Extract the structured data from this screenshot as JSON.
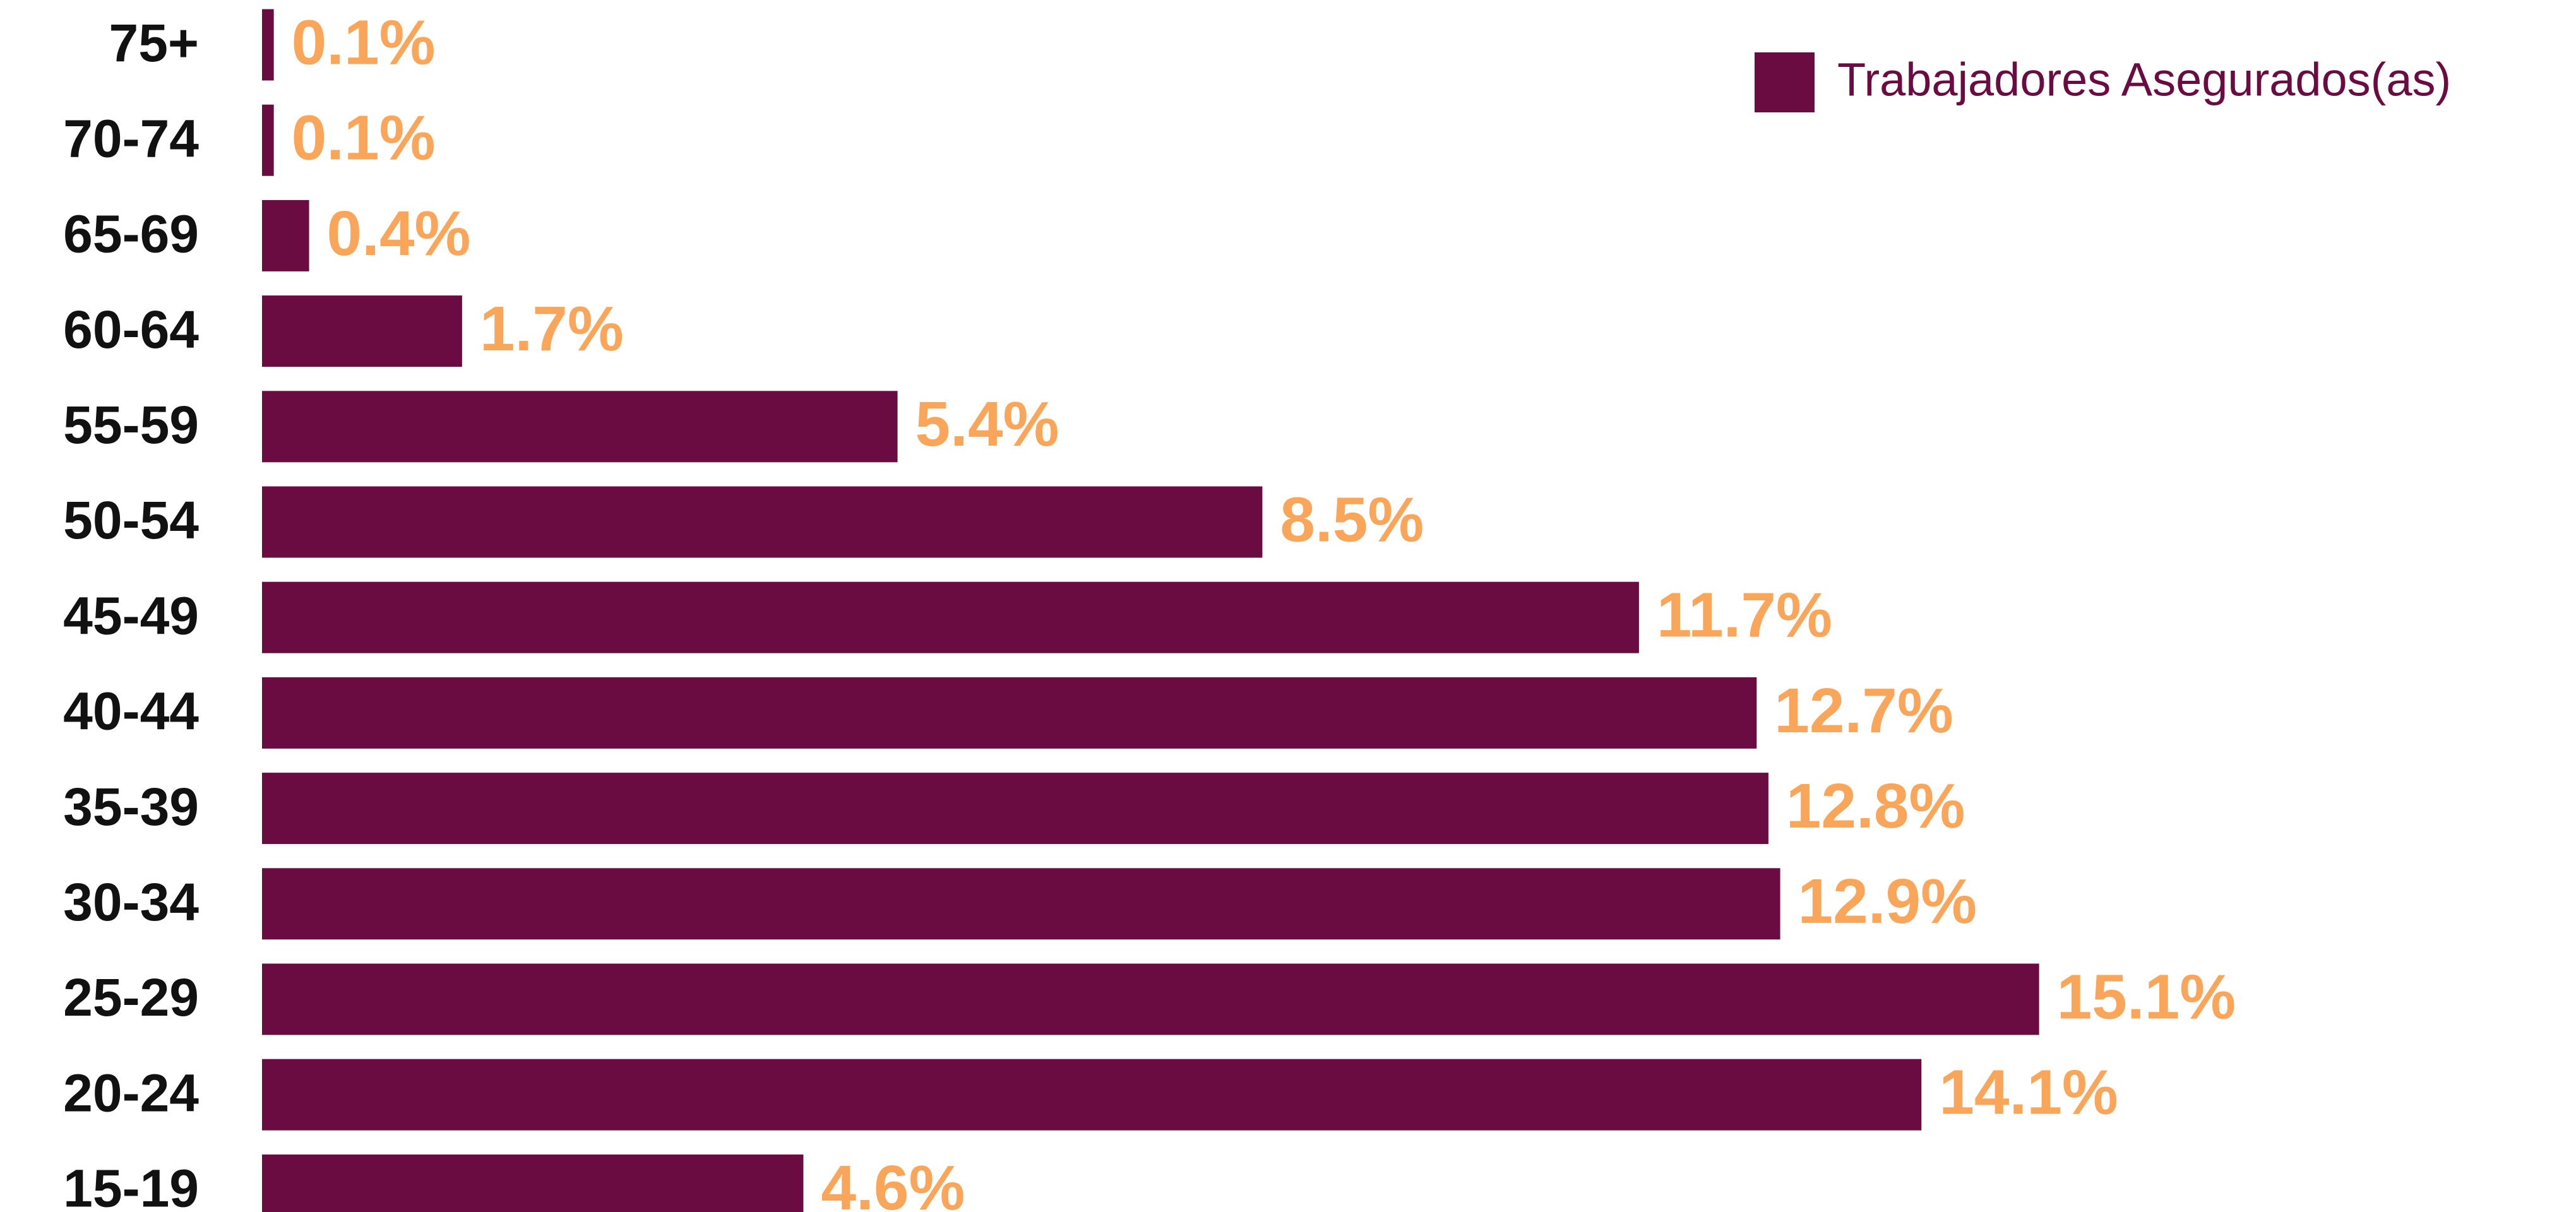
{
  "chart_data": {
    "type": "hbar",
    "categories": [
      "75+",
      "70-74",
      "65-69",
      "60-64",
      "55-59",
      "50-54",
      "45-49",
      "40-44",
      "35-39",
      "30-34",
      "25-29",
      "20-24",
      "15-19"
    ],
    "series": [
      {
        "name": "Trabajadores Asegurados(as)",
        "color": "#6a0c41",
        "values": [
          0.1,
          0.1,
          0.4,
          1.7,
          5.4,
          8.5,
          11.7,
          12.7,
          12.8,
          12.9,
          15.1,
          14.1,
          4.6
        ],
        "value_labels": [
          "0.1%",
          "0.1%",
          "0.4%",
          "1.7%",
          "5.4%",
          "8.5%",
          "11.7%",
          "12.7%",
          "12.8%",
          "12.9%",
          "15.1%",
          "14.1%",
          "4.6%"
        ]
      }
    ],
    "value_label_color": "#f9a65a",
    "legend": "top-right"
  }
}
